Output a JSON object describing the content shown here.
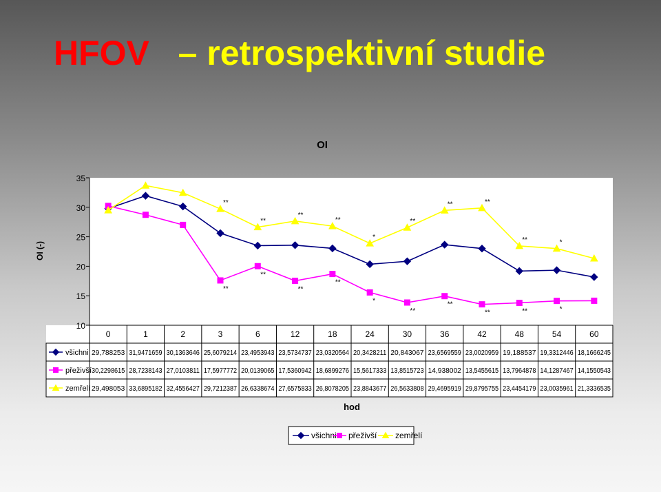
{
  "slide": {
    "title_red": "HFOV",
    "title_yellow": "– retrospektivní studie"
  },
  "chart_data": {
    "type": "line",
    "title": "OI",
    "xlabel": "hod",
    "ylabel": "OI (-)",
    "ylim": [
      10,
      35
    ],
    "yticks": [
      "10",
      "15",
      "20",
      "25",
      "30",
      "35"
    ],
    "categories": [
      "0",
      "1",
      "2",
      "3",
      "6",
      "12",
      "18",
      "24",
      "30",
      "36",
      "42",
      "48",
      "54",
      "60"
    ],
    "legend_position": "bottom",
    "series": [
      {
        "name": "všichni",
        "color": "#000080",
        "marker": "diamond",
        "values": [
          29.788253,
          31.9471659,
          30.1363646,
          25.6079214,
          23.4953943,
          23.5734737,
          23.0320564,
          20.3428211,
          20.843067,
          23.6569559,
          23.0020959,
          19.188537,
          19.3312446,
          18.1666245
        ],
        "labels": [
          "29,788253",
          "31,9471659",
          "30,1363646",
          "25,6079214",
          "23,4953943",
          "23,5734737",
          "23,0320564",
          "20,3428211",
          "20,843067",
          "23,6569559",
          "23,0020959",
          "19,188537",
          "19,3312446",
          "18,1666245"
        ]
      },
      {
        "name": "přeživší",
        "color": "#ff00ff",
        "marker": "square",
        "values": [
          30.2298615,
          28.7238143,
          27.0103811,
          17.5977772,
          20.0139065,
          17.5360942,
          18.6899276,
          15.5617333,
          13.8515723,
          14.938002,
          13.5455615,
          13.7964878,
          14.1287467,
          14.1550543
        ],
        "labels": [
          "30,2298615",
          "28,7238143",
          "27,0103811",
          "17,5977772",
          "20,0139065",
          "17,5360942",
          "18,6899276",
          "15,5617333",
          "13,8515723",
          "14,938002",
          "13,5455615",
          "13,7964878",
          "14,1287467",
          "14,1550543"
        ]
      },
      {
        "name": "zemřelí",
        "color": "#ffff00",
        "marker": "triangle",
        "values": [
          29.498053,
          33.6895182,
          32.4556427,
          29.7212387,
          26.6338674,
          27.6575833,
          26.8078205,
          23.8843677,
          26.5633808,
          29.4695919,
          29.8795755,
          23.4454179,
          23.0035961,
          21.3336535
        ],
        "labels": [
          "29,498053",
          "33,6895182",
          "32,4556427",
          "29,7212387",
          "26,6338674",
          "27,6575833",
          "26,8078205",
          "23,8843677",
          "26,5633808",
          "29,4695919",
          "29,8795755",
          "23,4454179",
          "23,0035961",
          "21,3336535"
        ]
      }
    ],
    "annotations": {
      "zemreli": [
        "",
        "",
        "",
        "**",
        "**",
        "**",
        "**",
        "*",
        "**",
        "**",
        "**",
        "**",
        "*",
        ""
      ],
      "prezivsi": [
        "",
        "",
        "",
        "**",
        "**",
        "**",
        "**",
        "*",
        "**",
        "**",
        "**",
        "**",
        "*",
        ""
      ]
    }
  }
}
